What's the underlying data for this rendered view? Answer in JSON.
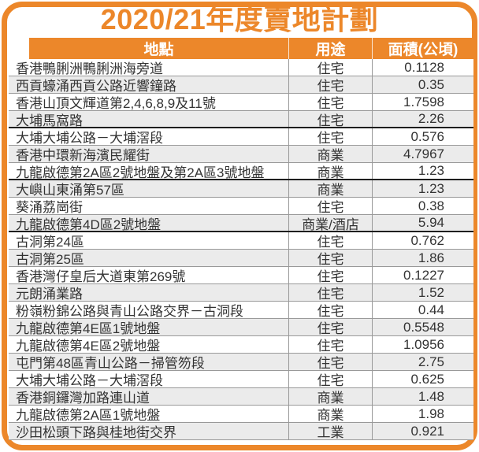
{
  "title": "2020/21年度賣地計劃",
  "colors": {
    "accent_orange": "#EC872A",
    "stripe_gray": "#EBEBEB",
    "row_divider_gray": "#999999",
    "group_divider_dark": "#1F1F1F",
    "body_text": "#333333",
    "header_text": "#FFFFFF"
  },
  "table": {
    "columns": [
      "地點",
      "用途",
      "面積(公頃)"
    ],
    "rows": [
      {
        "location": "香港鴨脷洲鴨脷洲海旁道",
        "use": "住宅",
        "area": "0.1128",
        "thick_after": false
      },
      {
        "location": "西貢蠔涌西貢公路近響鐘路",
        "use": "住宅",
        "area": "0.35",
        "thick_after": false
      },
      {
        "location": "香港山頂文輝道第2,4,6,8,9及11號",
        "use": "住宅",
        "area": "1.7598",
        "thick_after": false
      },
      {
        "location": "大埔馬窩路",
        "use": "住宅",
        "area": "2.26",
        "thick_after": true
      },
      {
        "location": "大埔大埔公路－大埔滘段",
        "use": "住宅",
        "area": "0.576",
        "thick_after": false
      },
      {
        "location": "香港中環新海濱民耀街",
        "use": "商業",
        "area": "4.7967",
        "thick_after": false
      },
      {
        "location": "九龍啟德第2A區2號地盤及第2A區3號地盤",
        "use": "商業",
        "area": "1.23",
        "thick_after": true
      },
      {
        "location": "大嶼山東涌第57區",
        "use": "商業",
        "area": "1.23",
        "thick_after": false
      },
      {
        "location": "葵涌荔崗街",
        "use": "住宅",
        "area": "0.38",
        "thick_after": false
      },
      {
        "location": "九龍啟德第4D區2號地盤",
        "use": "商業/酒店",
        "area": "5.94",
        "thick_after": true
      },
      {
        "location": "古洞第24區",
        "use": "住宅",
        "area": "0.762",
        "thick_after": false
      },
      {
        "location": "古洞第25區",
        "use": "住宅",
        "area": "1.86",
        "thick_after": false
      },
      {
        "location": "香港灣仔皇后大道東第269號",
        "use": "住宅",
        "area": "0.1227",
        "thick_after": false
      },
      {
        "location": "元朗涌業路",
        "use": "住宅",
        "area": "1.52",
        "thick_after": false
      },
      {
        "location": "粉嶺粉錦公路與青山公路交界－古洞段",
        "use": "住宅",
        "area": "0.44",
        "thick_after": false
      },
      {
        "location": "九龍啟德第4E區1號地盤",
        "use": "住宅",
        "area": "0.5548",
        "thick_after": false
      },
      {
        "location": "九龍啟德第4E區2號地盤",
        "use": "住宅",
        "area": "1.0956",
        "thick_after": false
      },
      {
        "location": "屯門第48區青山公路－掃管笏段",
        "use": "住宅",
        "area": "2.75",
        "thick_after": false
      },
      {
        "location": "大埔大埔公路－大埔滘段",
        "use": "住宅",
        "area": "0.625",
        "thick_after": false
      },
      {
        "location": "香港銅鑼灣加路連山道",
        "use": "商業",
        "area": "1.48",
        "thick_after": false
      },
      {
        "location": "九龍啟德第2A區1號地盤",
        "use": "商業",
        "area": "1.98",
        "thick_after": false
      },
      {
        "location": "沙田松頭下路與桂地街交界",
        "use": "工業",
        "area": "0.921",
        "thick_after": false
      }
    ]
  }
}
